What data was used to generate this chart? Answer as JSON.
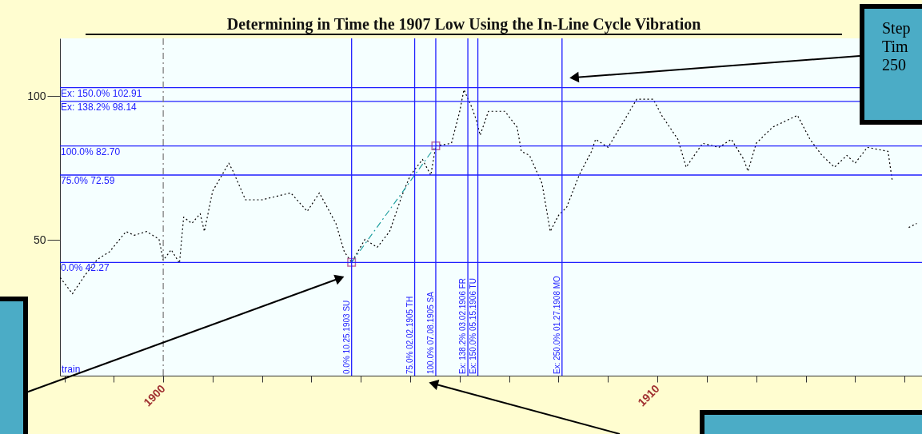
{
  "chart_data": {
    "type": "line",
    "title": "Determining in Time the 1907 Low Using the In-Line Cycle Vibration",
    "xlim": [
      "1897-11-29",
      "1915-05-10"
    ],
    "ylim": [
      3,
      120
    ],
    "xticks": [
      {
        "value": "1898",
        "label": null
      },
      {
        "value": "1899",
        "label": null
      },
      "1900",
      {
        "value": "1901",
        "label": null
      },
      {
        "value": "1902",
        "label": null
      },
      {
        "value": "1903",
        "label": null
      },
      {
        "value": "1904",
        "label": null
      },
      {
        "value": "1905",
        "label": null
      },
      {
        "value": "1906",
        "label": null
      },
      {
        "value": "1907",
        "label": null
      },
      {
        "value": "1908",
        "label": null
      },
      {
        "value": "1909",
        "label": null
      },
      "1910",
      {
        "value": "1911",
        "label": null
      },
      {
        "value": "1912",
        "label": null
      },
      {
        "value": "1913",
        "label": null
      },
      {
        "value": "1914",
        "label": null
      },
      {
        "value": "1915",
        "label": null
      }
    ],
    "yticks": [
      50,
      100
    ],
    "grid": false,
    "series": [
      {
        "color": "#000000",
        "line_style": "dotted",
        "x": [
          "1897-12",
          "1898-03",
          "1898-06",
          "1898-09",
          "1898-12",
          "1899-04",
          "1899-06",
          "1899-09",
          "1899-12",
          "1900-01",
          "1900-03",
          "1900-05",
          "1900-06",
          "1900-08",
          "1900-10",
          "1900-11",
          "1901-01",
          "1901-05",
          "1901-06",
          "1901-09",
          "1902-01",
          "1902-08",
          "1902-12",
          "1903-03",
          "1903-07",
          "1903-09",
          "1903-10-25",
          "1904-02",
          "1904-05",
          "1904-08",
          "1904-11",
          "1905-01",
          "1905-04",
          "1905-06",
          "1905-07-08",
          "1905-11",
          "1906-01",
          "1906-02",
          "1906-04",
          "1906-05",
          "1906-06",
          "1906-08",
          "1906-12",
          "1907-03",
          "1907-04",
          "1907-06",
          "1907-09",
          "1907-11",
          "1908-01",
          "1908-03",
          "1908-06",
          "1908-09",
          "1908-10",
          "1909-01",
          "1909-04",
          "1909-08",
          "1909-12",
          "1910-02",
          "1910-06",
          "1910-08",
          "1910-12",
          "1911-04",
          "1911-07",
          "1911-10",
          "1911-11",
          "1912-01",
          "1912-05",
          "1912-11",
          "1913-02",
          "1913-05",
          "1913-08",
          "1913-11",
          "1914-01",
          "1914-04",
          "1914-09",
          "1914-10",
          "1914-11",
          "1915-02",
          "1915-04"
        ],
        "values": [
          37,
          31.4,
          37.8,
          43.3,
          46,
          53,
          51.7,
          53,
          50.3,
          43,
          46.7,
          42,
          58,
          55.8,
          59.2,
          53,
          67,
          76.7,
          73.9,
          64,
          64,
          66.4,
          60,
          66.4,
          55.8,
          46,
          42.27,
          50.3,
          47.5,
          53,
          65.6,
          72.5,
          78,
          72.5,
          82.7,
          83.6,
          94.7,
          102.2,
          96,
          92,
          86.4,
          94.7,
          94.7,
          89.2,
          80.8,
          79.4,
          69.7,
          53,
          58.6,
          61.4,
          72.5,
          80.8,
          85,
          82.2,
          89.2,
          98.9,
          98.9,
          93.3,
          85,
          75.3,
          83.6,
          82.2,
          85,
          78,
          73.9,
          83.6,
          89.2,
          93.3,
          85,
          79.4,
          75.3,
          79.4,
          76.7,
          82.2,
          80.8,
          71,
          null,
          54.4,
          55.8
        ]
      },
      {
        "color": "#20a0a0",
        "line_style": "dashed",
        "x": [
          "1903-10-25",
          "1905-07-08"
        ],
        "values": [
          42.27,
          82.7
        ]
      },
      {
        "type": "scatter",
        "color": "#a0307f",
        "marker": "square",
        "x": [
          "1903-10-25",
          "1905-07-08"
        ],
        "values": [
          42.27,
          82.7
        ]
      }
    ],
    "ref_lines": [
      {
        "axis": "y",
        "value": 102.91,
        "label": "Ex: 150.0% 102.91",
        "color": "#2020ff"
      },
      {
        "axis": "y",
        "value": 98.14,
        "label": "Ex: 138.2% 98.14",
        "color": "#2020ff"
      },
      {
        "axis": "y",
        "value": 82.7,
        "label": "100.0% 82.70",
        "color": "#2020ff"
      },
      {
        "axis": "y",
        "value": 72.59,
        "label": "75.0% 72.59",
        "color": "#2020ff"
      },
      {
        "axis": "y",
        "value": 42.27,
        "label": "0.0% 42.27",
        "color": "#2020ff"
      },
      {
        "axis": "x",
        "value": "1900",
        "color": "#808080",
        "line_style": "dashed"
      },
      {
        "axis": "x",
        "value": "1903-10-25",
        "label": "0.0% 10.25.1903 SU",
        "color": "#2020ff"
      },
      {
        "axis": "x",
        "value": "1905-02-02",
        "label": "75.0% 02.02.1905 TH",
        "color": "#2020ff"
      },
      {
        "axis": "x",
        "value": "1905-07-08",
        "label": "100.0% 07.08.1905 SA",
        "color": "#2020ff"
      },
      {
        "axis": "x",
        "value": "1906-03-02",
        "label": "Ex: 138.2% 03.02.1906 FR",
        "color": "#2020ff"
      },
      {
        "axis": "x",
        "value": "1906-05-15",
        "label": "Ex: 150.0% 05.15.1906 TU",
        "color": "#2020ff"
      },
      {
        "axis": "x",
        "value": "1908-01-27",
        "label": "Ex: 250.0% 01.27.1908 MO",
        "color": "#2020ff"
      }
    ],
    "annotations": [
      "train",
      "Step\nTim\n250"
    ]
  }
}
